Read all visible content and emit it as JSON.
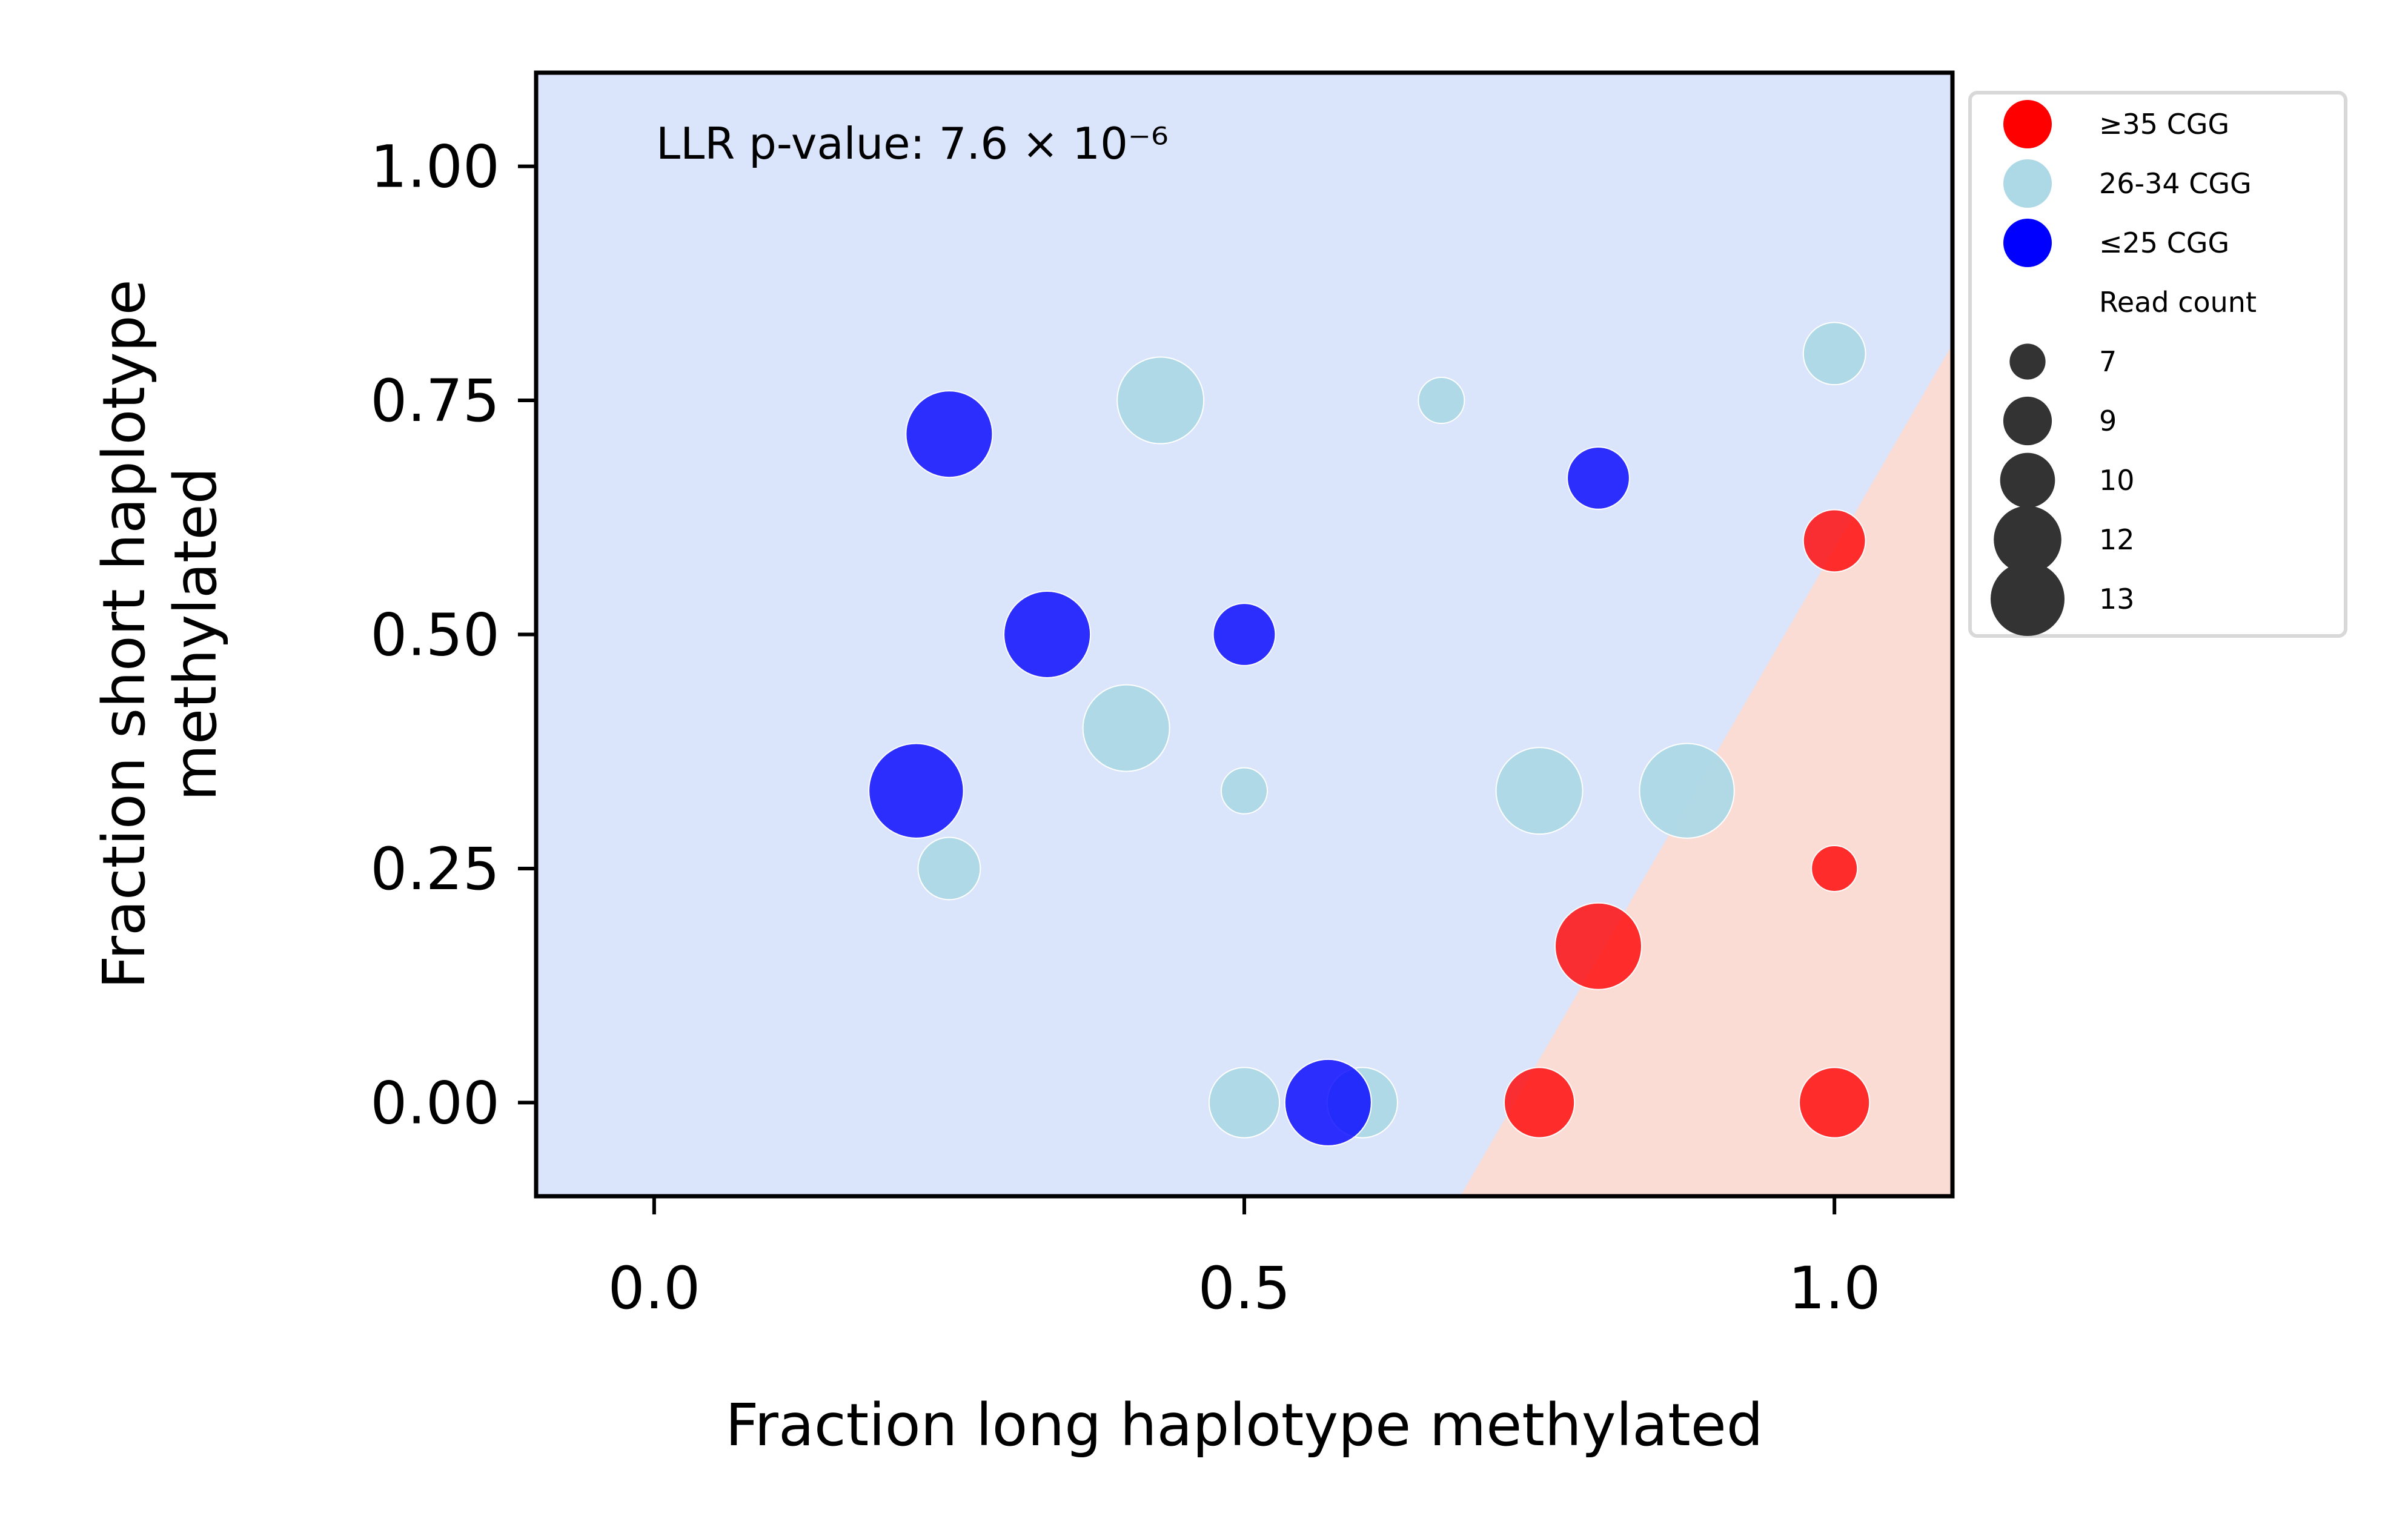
{
  "chart_data": {
    "type": "scatter",
    "xlabel": "Fraction long haplotype methylated",
    "ylabel_lines": [
      "Fraction short haplotype",
      "methylated"
    ],
    "xlim": [
      -0.1,
      1.1
    ],
    "ylim": [
      -0.1,
      1.1
    ],
    "xticks": [
      0.0,
      0.5,
      1.0
    ],
    "xtick_labels": [
      "0.0",
      "0.5",
      "1.0"
    ],
    "yticks": [
      0.0,
      0.25,
      0.5,
      0.75,
      1.0
    ],
    "ytick_labels": [
      "0.00",
      "0.25",
      "0.50",
      "0.75",
      "1.00"
    ],
    "annotation": "LLR p-value: 7.6 × 10⁻⁶",
    "grid": false,
    "background_regions": [
      {
        "name": "unmethylated-short",
        "color": "#dae5fb"
      },
      {
        "name": "methylated-long",
        "color": "#fadcd4"
      }
    ],
    "decision_boundary": [
      [
        0.683,
        -0.1
      ],
      [
        1.1,
        0.81
      ]
    ],
    "series": [
      {
        "name": "≥35 CGG",
        "color": "#ff0000",
        "points": [
          {
            "x": 1.0,
            "y": 0.6,
            "read_count": 9
          },
          {
            "x": 1.0,
            "y": 0.25,
            "read_count": 7
          },
          {
            "x": 0.8,
            "y": 0.167,
            "read_count": 12
          },
          {
            "x": 0.75,
            "y": 0.0,
            "read_count": 10
          },
          {
            "x": 1.0,
            "y": 0.0,
            "read_count": 10
          }
        ]
      },
      {
        "name": "26-34 CGG",
        "color": "#add8e6",
        "points": [
          {
            "x": 1.0,
            "y": 0.8,
            "read_count": 9
          },
          {
            "x": 0.667,
            "y": 0.75,
            "read_count": 7
          },
          {
            "x": 0.429,
            "y": 0.75,
            "read_count": 12
          },
          {
            "x": 0.4,
            "y": 0.4,
            "read_count": 12
          },
          {
            "x": 0.5,
            "y": 0.333,
            "read_count": 7
          },
          {
            "x": 0.75,
            "y": 0.333,
            "read_count": 12
          },
          {
            "x": 0.875,
            "y": 0.333,
            "read_count": 13
          },
          {
            "x": 0.25,
            "y": 0.25,
            "read_count": 9
          },
          {
            "x": 0.5,
            "y": 0.0,
            "read_count": 10
          },
          {
            "x": 0.6,
            "y": 0.0,
            "read_count": 10
          }
        ]
      },
      {
        "name": "≤25 CGG",
        "color": "#0000ff",
        "points": [
          {
            "x": 0.25,
            "y": 0.714,
            "read_count": 12
          },
          {
            "x": 0.8,
            "y": 0.667,
            "read_count": 9
          },
          {
            "x": 0.333,
            "y": 0.5,
            "read_count": 12
          },
          {
            "x": 0.5,
            "y": 0.5,
            "read_count": 9
          },
          {
            "x": 0.222,
            "y": 0.333,
            "read_count": 13
          },
          {
            "x": 0.571,
            "y": 0.0,
            "read_count": 12
          }
        ]
      }
    ],
    "legend": {
      "placement": "outside right, top",
      "color_title": "",
      "size_title": "Read count",
      "size_entries": [
        "7",
        "9",
        "10",
        "12",
        "13"
      ],
      "size_color": "#333333"
    }
  }
}
